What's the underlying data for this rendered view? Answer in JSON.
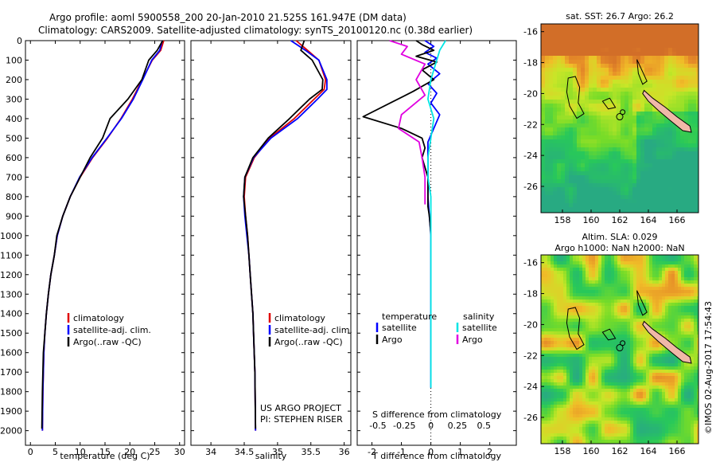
{
  "header": {
    "line1": "Argo profile: aoml 5900558_200 20-Jan-2010 21.525S 161.947E (DM data)",
    "line2": "Climatology: CARS2009. Satellite-adjusted climatology: synTS_20100120.nc (0.38d earlier)"
  },
  "footer": {
    "project": "US ARGO PROJECT",
    "pi": "PI: STEPHEN RISER",
    "stamp": "©IMOS 02-Aug-2017 17:54:43"
  },
  "colors": {
    "climatology": "#e00000",
    "satellite": "#0000ff",
    "argo": "#000000",
    "sal_satellite": "#00e5e5",
    "sal_argo": "#e000e0"
  },
  "chart_data": [
    {
      "type": "line",
      "id": "temp",
      "xlabel": "temperature (deg C)",
      "ylabel": "",
      "xlim": [
        -1,
        31
      ],
      "ylim": [
        2075,
        0
      ],
      "xticks": [
        "0",
        "5",
        "10",
        "15",
        "20",
        "25",
        "30"
      ],
      "xtick_values": [
        0,
        5,
        10,
        15,
        20,
        25,
        30
      ],
      "yticks": [
        "0",
        "100",
        "200",
        "300",
        "400",
        "500",
        "600",
        "700",
        "800",
        "900",
        "1000",
        "1100",
        "1200",
        "1300",
        "1400",
        "1500",
        "1600",
        "1700",
        "1800",
        "1900",
        "2000"
      ],
      "ytick_values": [
        0,
        100,
        200,
        300,
        400,
        500,
        600,
        700,
        800,
        900,
        1000,
        1100,
        1200,
        1300,
        1400,
        1500,
        1600,
        1700,
        1800,
        1900,
        2000
      ],
      "legend": [
        "climatology",
        "satellite-adj. clim.",
        "Argo(..raw -QC)"
      ],
      "legend_position": "lower-middle",
      "series": [
        {
          "name": "climatology",
          "color": "#e00000",
          "x": [
            26.8,
            26.2,
            24.5,
            22.5,
            20.5,
            18.2,
            15.5,
            12.5,
            10.0,
            8.0,
            6.5,
            5.4,
            4.8,
            4.1,
            3.6,
            3.2,
            2.9,
            2.7,
            2.5,
            2.4
          ],
          "y": [
            0,
            50,
            100,
            200,
            300,
            400,
            500,
            600,
            700,
            800,
            900,
            1000,
            1100,
            1200,
            1300,
            1400,
            1500,
            1600,
            1800,
            2000
          ]
        },
        {
          "name": "satellite-adj. clim.",
          "color": "#0000ff",
          "x": [
            26.5,
            26.0,
            24.4,
            22.6,
            20.7,
            18.3,
            15.4,
            12.4,
            9.9,
            8.0,
            6.5,
            5.4,
            4.8,
            4.1,
            3.6,
            3.2,
            2.9,
            2.7,
            2.5,
            2.4
          ],
          "y": [
            0,
            50,
            100,
            200,
            300,
            400,
            500,
            600,
            700,
            800,
            900,
            1000,
            1100,
            1200,
            1300,
            1400,
            1500,
            1600,
            1800,
            2000
          ]
        },
        {
          "name": "Argo(..raw -QC)",
          "color": "#000000",
          "x": [
            26.6,
            25.5,
            23.8,
            22.4,
            19.6,
            16.0,
            14.5,
            12.0,
            10.0,
            8.0,
            6.5,
            5.3,
            4.8,
            4.1,
            3.6,
            3.2,
            2.9,
            2.6,
            2.4,
            2.3
          ],
          "y": [
            0,
            50,
            100,
            200,
            300,
            400,
            500,
            600,
            700,
            800,
            900,
            1000,
            1100,
            1200,
            1300,
            1400,
            1500,
            1600,
            1800,
            1990
          ]
        }
      ]
    },
    {
      "type": "line",
      "id": "sal",
      "xlabel": "salinity",
      "ylabel": "",
      "xlim": [
        33.7,
        36.1
      ],
      "ylim": [
        2075,
        0
      ],
      "xticks": [
        "34",
        "34.5",
        "35",
        "35.5",
        "36"
      ],
      "xtick_values": [
        34,
        34.5,
        35,
        35.5,
        36
      ],
      "legend": [
        "climatology",
        "satellite-adj. clim.",
        "Argo(..raw -QC)"
      ],
      "legend_position": "lower-middle",
      "series": [
        {
          "name": "climatology",
          "color": "#e00000",
          "x": [
            35.28,
            35.45,
            35.62,
            35.72,
            35.7,
            35.55,
            35.25,
            34.88,
            34.65,
            34.52,
            34.5,
            34.52,
            34.55,
            34.57,
            34.59,
            34.61,
            34.63,
            34.64,
            34.66,
            34.67
          ],
          "y": [
            0,
            50,
            100,
            200,
            250,
            300,
            400,
            500,
            600,
            700,
            800,
            900,
            1000,
            1100,
            1200,
            1300,
            1400,
            1500,
            1700,
            2000
          ]
        },
        {
          "name": "satellite-adj. clim.",
          "color": "#0000ff",
          "x": [
            35.2,
            35.42,
            35.62,
            35.74,
            35.74,
            35.6,
            35.3,
            34.9,
            34.64,
            34.51,
            34.49,
            34.51,
            34.54,
            34.57,
            34.59,
            34.61,
            34.63,
            34.64,
            34.66,
            34.67
          ],
          "y": [
            0,
            50,
            100,
            200,
            250,
            300,
            400,
            500,
            600,
            700,
            800,
            900,
            1000,
            1100,
            1200,
            1300,
            1400,
            1500,
            1700,
            2000
          ]
        },
        {
          "name": "Argo(..raw -QC)",
          "color": "#000000",
          "x": [
            35.4,
            35.35,
            35.52,
            35.68,
            35.67,
            35.48,
            35.18,
            34.86,
            34.63,
            34.51,
            34.49,
            34.52,
            34.55,
            34.57,
            34.59,
            34.61,
            34.63,
            34.64,
            34.66,
            34.67
          ],
          "y": [
            0,
            50,
            100,
            200,
            250,
            300,
            400,
            500,
            600,
            700,
            800,
            900,
            1000,
            1100,
            1200,
            1300,
            1400,
            1500,
            1700,
            1990
          ]
        }
      ]
    },
    {
      "type": "line",
      "id": "diff",
      "xlabel": "T difference from climatology",
      "x2label": "S difference from climatology",
      "xlim": [
        -2.5,
        2.9
      ],
      "ylim": [
        2075,
        0
      ],
      "xticks": [
        "-2",
        "-1",
        "0",
        "1",
        "2"
      ],
      "xtick_values": [
        -2,
        -1,
        0,
        1,
        2
      ],
      "x2ticks": [
        "-0.5",
        "-0.25",
        "0",
        "0.25",
        "0.5"
      ],
      "x2tick_positions_T": [
        -1.8,
        -0.9,
        0,
        0.9,
        1.8
      ],
      "legend_temperature_title": "temperature",
      "legend_salinity_title": "salinity",
      "legend_temperature": [
        "satellite",
        "Argo"
      ],
      "legend_salinity": [
        "satellite",
        "Argo"
      ],
      "series": [
        {
          "name": "satellite",
          "color": "#0000ff",
          "x": [
            -0.2,
            0.1,
            -0.2,
            0.2,
            -0.1,
            0.3,
            -0.1,
            0.2,
            0.0,
            0.3,
            0.1,
            -0.1,
            -0.1,
            -0.1,
            -0.1,
            -0.05,
            0.0,
            0.0,
            0.0,
            0.0,
            0.0
          ],
          "y": [
            0,
            30,
            60,
            90,
            120,
            170,
            220,
            270,
            320,
            380,
            450,
            520,
            600,
            700,
            800,
            900,
            1000,
            1200,
            1500,
            1700,
            1780
          ]
        },
        {
          "name": "Argo",
          "color": "#000000",
          "x": [
            -0.5,
            -0.3,
            0.1,
            -0.5,
            0.2,
            -0.3,
            0.1,
            -0.6,
            -2.3,
            -1.0,
            -0.3,
            -0.2,
            -0.3,
            -0.1,
            -0.1,
            -0.1,
            -0.05,
            0.0
          ],
          "y": [
            0,
            20,
            50,
            80,
            110,
            150,
            200,
            260,
            390,
            450,
            500,
            550,
            600,
            700,
            800,
            850,
            900,
            990
          ]
        },
        {
          "name": "sal satellite",
          "color": "#00e5e5",
          "x": [
            0.5,
            0.3,
            0.2,
            0.0,
            -0.1,
            0.1,
            0.0,
            -0.1,
            -0.1,
            0.0,
            0.0,
            0.0,
            0.0,
            0.0,
            0.0
          ],
          "y": [
            0,
            50,
            100,
            200,
            300,
            400,
            500,
            600,
            700,
            800,
            1000,
            1200,
            1400,
            1600,
            1780
          ]
        },
        {
          "name": "sal Argo",
          "color": "#e000e0",
          "x": [
            -1.4,
            -0.8,
            -1.0,
            -0.2,
            -0.5,
            -0.2,
            -1.0,
            -1.1,
            -0.4,
            -0.3,
            -0.2,
            -0.2,
            -0.2
          ],
          "y": [
            0,
            30,
            70,
            120,
            200,
            280,
            380,
            450,
            520,
            600,
            700,
            780,
            840
          ]
        }
      ]
    },
    {
      "type": "heatmap",
      "id": "sst",
      "title": "sat. SST: 26.7 Argo: 26.2",
      "xlim": [
        156.5,
        167.5
      ],
      "ylim": [
        -27.7,
        -15.5
      ],
      "xticks": [
        "158",
        "160",
        "162",
        "164",
        "166"
      ],
      "xtick_values": [
        158,
        160,
        162,
        164,
        166
      ],
      "yticks": [
        "-16",
        "-18",
        "-20",
        "-22",
        "-24",
        "-26"
      ],
      "ytick_values": [
        -16,
        -18,
        -20,
        -22,
        -24,
        -26
      ]
    },
    {
      "type": "heatmap",
      "id": "sla",
      "title": "Altim. SLA: 0.029",
      "subtitle": "Argo h1000: NaN h2000: NaN",
      "xlim": [
        156.5,
        167.5
      ],
      "ylim": [
        -27.7,
        -15.5
      ],
      "xticks": [
        "158",
        "160",
        "162",
        "164",
        "166"
      ],
      "xtick_values": [
        158,
        160,
        162,
        164,
        166
      ],
      "yticks": [
        "-16",
        "-18",
        "-20",
        "-22",
        "-24",
        "-26"
      ],
      "ytick_values": [
        -16,
        -18,
        -20,
        -22,
        -24,
        -26
      ]
    }
  ]
}
